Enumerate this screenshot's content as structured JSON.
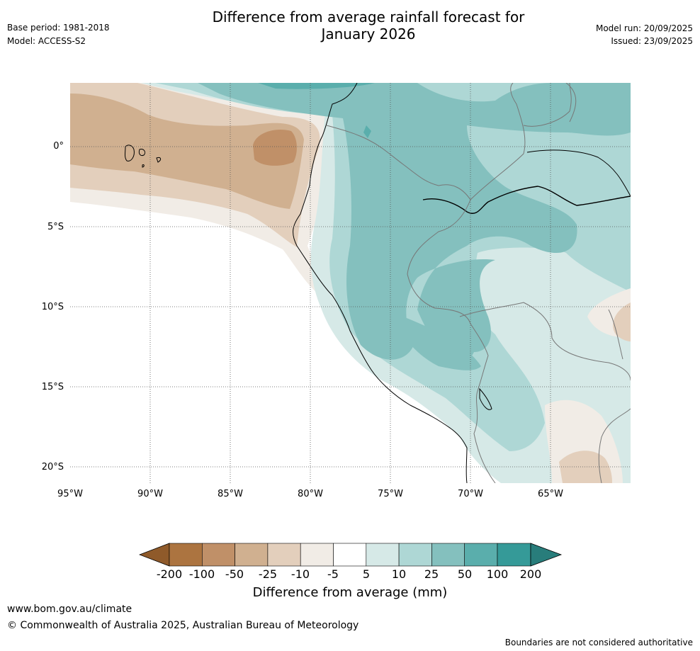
{
  "header": {
    "title_line1": "Difference from average rainfall forecast for",
    "title_line2": "January 2026",
    "base_period": "Base period: 1981-2018",
    "model": "Model: ACCESS-S2",
    "model_run": "Model run: 20/09/2025",
    "issued": "Issued: 23/09/2025"
  },
  "map": {
    "lat_labels": [
      "0°",
      "5°S",
      "10°S",
      "15°S",
      "20°S"
    ],
    "lon_labels": [
      "95°W",
      "90°W",
      "85°W",
      "80°W",
      "75°W",
      "70°W",
      "65°W"
    ]
  },
  "colorbar": {
    "tick_labels": [
      "-200",
      "-100",
      "-50",
      "-25",
      "-10",
      "-5",
      "5",
      "10",
      "25",
      "50",
      "100",
      "200"
    ],
    "colors": [
      "#8f5a2a",
      "#ac7440",
      "#c09068",
      "#d0b090",
      "#e3cfbc",
      "#f1ece6",
      "#ffffff",
      "#d6e9e7",
      "#aed7d5",
      "#84c0be",
      "#5aaeac",
      "#359a98",
      "#287d7b"
    ],
    "label": "Difference from average (mm)"
  },
  "footer": {
    "url": "www.bom.gov.au/climate",
    "copyright": "© Commonwealth of Australia 2025, Australian Bureau of Meteorology",
    "disclaimer": "Boundaries are not considered authoritative"
  }
}
